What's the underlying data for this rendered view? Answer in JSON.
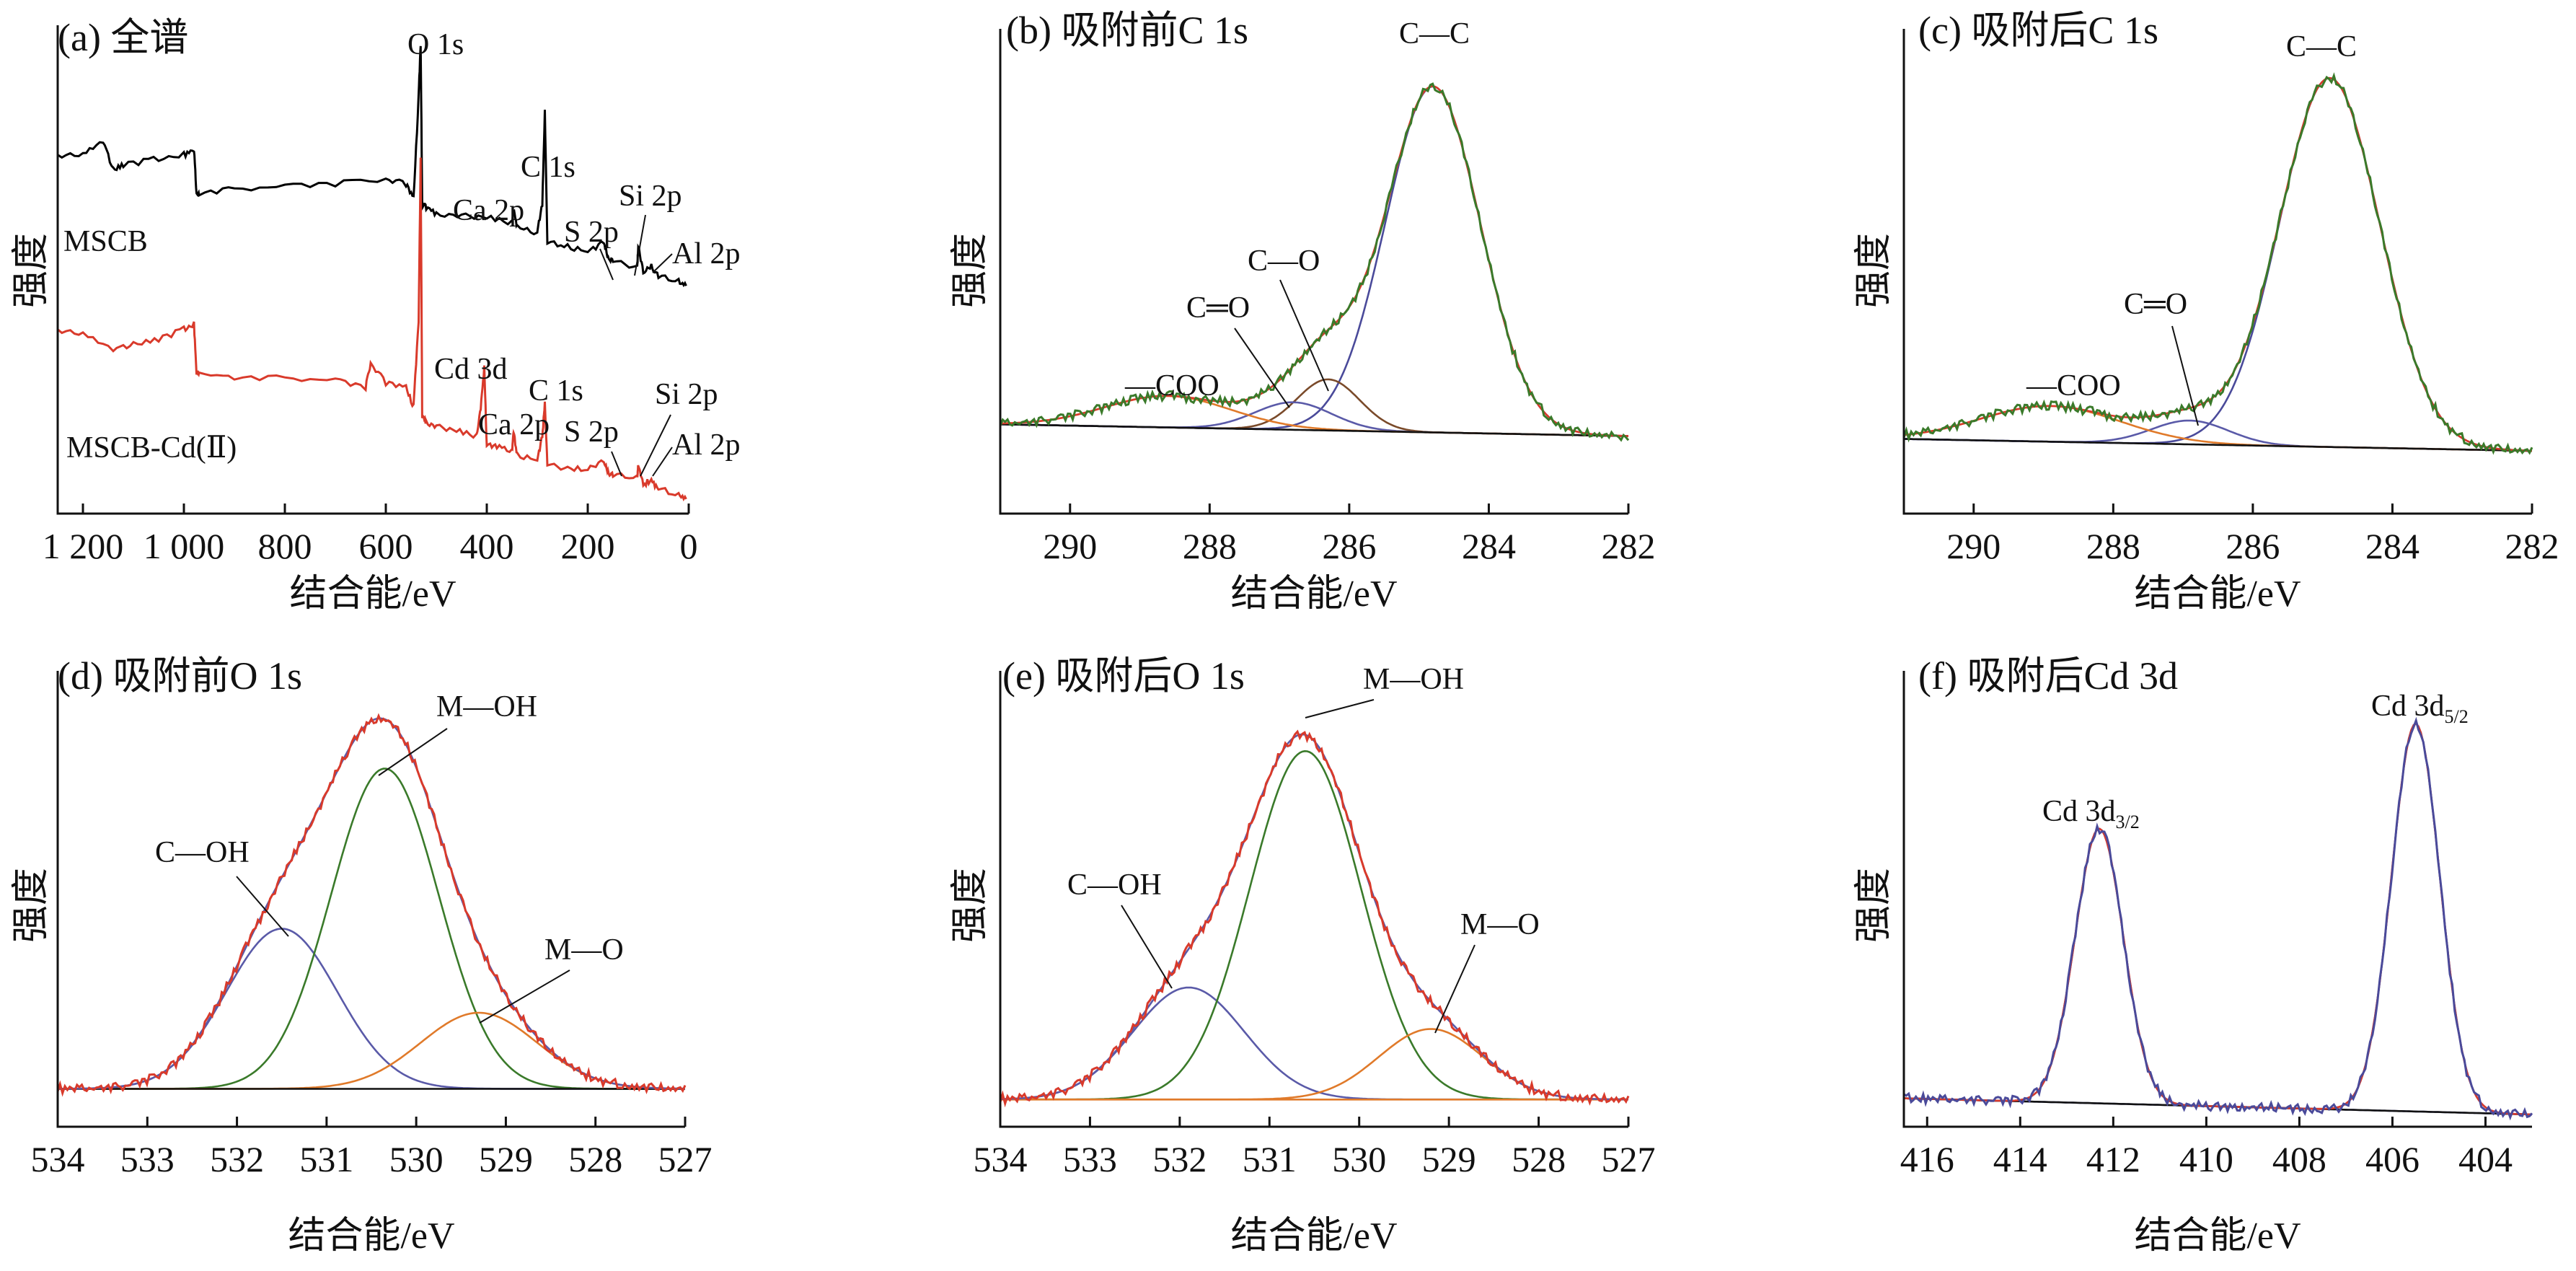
{
  "chart_data": [
    {
      "id": "a",
      "type": "line",
      "title": "(a)  全谱",
      "xlabel": "结合能/eV",
      "ylabel": "强度",
      "xlim": [
        1250,
        0
      ],
      "ylim": [
        0,
        100
      ],
      "ticks": [
        1200,
        1000,
        800,
        600,
        400,
        200,
        0
      ],
      "tick_labels": [
        "1 200",
        "1 000",
        "800",
        "600",
        "400",
        "200",
        "0"
      ],
      "series": [
        {
          "name": "MSCB",
          "color": "#000000",
          "style": "spectrum",
          "x": [
            1250,
            1200,
            1160,
            1140,
            1120,
            1060,
            1000,
            980,
            975,
            970,
            900,
            800,
            700,
            600,
            560,
            545,
            535,
            531,
            528,
            520,
            500,
            450,
            400,
            350,
            347,
            340,
            300,
            290,
            285,
            280,
            240,
            200,
            168,
            160,
            150,
            102,
            100,
            90,
            74,
            60,
            20,
            5
          ],
          "y": [
            74,
            74,
            77,
            71,
            72,
            73,
            74,
            75,
            66,
            66,
            67,
            67.5,
            68,
            69,
            68,
            65,
            86,
            97,
            64,
            63,
            62,
            61.5,
            61,
            60,
            63,
            59,
            58,
            64,
            83,
            56,
            55,
            54,
            56,
            53,
            52,
            51,
            55,
            50,
            51,
            49,
            48,
            47
          ]
        },
        {
          "name": "MSCB-Cd(Ⅱ)",
          "color": "#d93a2b",
          "style": "spectrum",
          "x": [
            1250,
            1200,
            1140,
            1100,
            1050,
            1000,
            980,
            975,
            970,
            900,
            800,
            700,
            640,
            630,
            600,
            560,
            545,
            535,
            531,
            528,
            520,
            500,
            460,
            420,
            412,
            405,
            400,
            380,
            350,
            347,
            340,
            300,
            290,
            285,
            280,
            240,
            200,
            168,
            160,
            150,
            102,
            100,
            90,
            74,
            60,
            20,
            5
          ],
          "y": [
            38,
            37,
            34,
            35,
            36,
            38,
            39,
            29,
            29,
            28,
            28,
            27.5,
            26,
            31,
            27,
            26,
            22,
            40,
            73,
            20,
            19,
            18,
            17,
            16,
            22,
            30,
            14,
            14,
            13,
            17,
            12,
            11,
            16,
            23,
            10,
            9.5,
            9,
            11,
            8.5,
            8,
            7.5,
            10,
            6,
            7,
            5,
            4,
            3
          ]
        }
      ],
      "labels": [
        "O 1s",
        "C 1s",
        "Ca 2p",
        "S 2p",
        "Si 2p",
        "Al 2p",
        "MSCB",
        "Cd 3d",
        "C 1s",
        "Ca 2p",
        "S 2p",
        "Si 2p",
        "Al 2p",
        "MSCB-Cd(Ⅱ)"
      ]
    },
    {
      "id": "b",
      "type": "line",
      "title": "(b)  吸附前C 1s",
      "xlabel": "结合能/eV",
      "ylabel": "强度",
      "xlim": [
        291,
        282
      ],
      "ylim": [
        0,
        100
      ],
      "ticks": [
        290,
        288,
        286,
        284,
        282
      ],
      "tick_labels": [
        "290",
        "288",
        "286",
        "284",
        "282"
      ],
      "series": [
        {
          "name": "C—C",
          "color": "#4a4a9a",
          "kind": "peak",
          "center": 284.8,
          "height": 88,
          "sigma": 0.68
        },
        {
          "name": "C—O",
          "color": "#7a4a2a",
          "kind": "peak",
          "center": 286.3,
          "height": 13,
          "sigma": 0.45
        },
        {
          "name": "C=O",
          "color": "#5a5aa8",
          "kind": "peak",
          "center": 286.8,
          "height": 7,
          "sigma": 0.55
        },
        {
          "name": "—COO",
          "color": "#e07a2a",
          "kind": "peak",
          "center": 288.6,
          "height": 8,
          "sigma": 0.9
        },
        {
          "name": "background",
          "color": "#111111",
          "kind": "baseline",
          "y0": 4,
          "y1": 1
        },
        {
          "name": "envelope",
          "color": "#d93a2b",
          "kind": "envelope"
        },
        {
          "name": "raw",
          "color": "#3a7a2a",
          "kind": "raw"
        }
      ],
      "labels": [
        "C—C",
        "C—O",
        "C═O",
        "—COO"
      ]
    },
    {
      "id": "c",
      "type": "line",
      "title": "(c)  吸附后C 1s",
      "xlabel": "结合能/eV",
      "ylabel": "强度",
      "xlim": [
        291,
        282
      ],
      "ylim": [
        0,
        100
      ],
      "ticks": [
        290,
        288,
        286,
        284,
        282
      ],
      "tick_labels": [
        "290",
        "288",
        "286",
        "284",
        "282"
      ],
      "series": [
        {
          "name": "C—C",
          "color": "#4a4a9a",
          "kind": "peak",
          "center": 284.9,
          "height": 93,
          "sigma": 0.72
        },
        {
          "name": "C=O",
          "color": "#5a5aa8",
          "kind": "peak",
          "center": 286.9,
          "height": 6,
          "sigma": 0.55
        },
        {
          "name": "—COO",
          "color": "#e07a2a",
          "kind": "peak",
          "center": 288.9,
          "height": 9,
          "sigma": 1.0
        },
        {
          "name": "background",
          "color": "#111111",
          "kind": "baseline",
          "y0": 3,
          "y1": 0
        },
        {
          "name": "envelope",
          "color": "#d93a2b",
          "kind": "envelope"
        },
        {
          "name": "raw",
          "color": "#3a7a2a",
          "kind": "raw"
        }
      ],
      "labels": [
        "C—C",
        "C═O",
        "—COO"
      ]
    },
    {
      "id": "d",
      "type": "line",
      "title": "(d)  吸附前O 1s",
      "xlabel": "结合能/eV",
      "ylabel": "强度",
      "xlim": [
        534,
        527
      ],
      "ylim": [
        0,
        100
      ],
      "ticks": [
        534,
        533,
        532,
        531,
        530,
        529,
        528,
        527
      ],
      "tick_labels": [
        "534",
        "533",
        "532",
        "531",
        "530",
        "529",
        "528",
        "527"
      ],
      "series": [
        {
          "name": "C—OH",
          "color": "#5a5aa8",
          "kind": "peak",
          "center": 531.5,
          "height": 40,
          "sigma": 0.62
        },
        {
          "name": "M—OH",
          "color": "#3a7a2a",
          "kind": "peak",
          "center": 530.35,
          "height": 80,
          "sigma": 0.6
        },
        {
          "name": "M—O",
          "color": "#e07a2a",
          "kind": "peak",
          "center": 529.3,
          "height": 19,
          "sigma": 0.65
        },
        {
          "name": "background",
          "color": "#111111",
          "kind": "baseline",
          "y0": 1,
          "y1": 1
        },
        {
          "name": "envelope",
          "color": "#5a5aa8",
          "kind": "envelope"
        },
        {
          "name": "raw",
          "color": "#d93a2b",
          "kind": "raw"
        }
      ],
      "labels": [
        "C—OH",
        "M—OH",
        "M—O"
      ]
    },
    {
      "id": "e",
      "type": "line",
      "title": "(e)  吸附后O 1s",
      "xlabel": "结合能/eV",
      "ylabel": "强度",
      "xlim": [
        534,
        527
      ],
      "ylim": [
        0,
        100
      ],
      "ticks": [
        534,
        533,
        532,
        531,
        530,
        529,
        528,
        527
      ],
      "tick_labels": [
        "534",
        "533",
        "532",
        "531",
        "530",
        "529",
        "528",
        "527"
      ],
      "series": [
        {
          "name": "C—OH",
          "color": "#5a5aa8",
          "kind": "peak",
          "center": 531.9,
          "height": 27,
          "sigma": 0.62
        },
        {
          "name": "M—OH",
          "color": "#3a7a2a",
          "kind": "peak",
          "center": 530.6,
          "height": 84,
          "sigma": 0.62
        },
        {
          "name": "M—O",
          "color": "#e07a2a",
          "kind": "peak",
          "center": 529.2,
          "height": 17,
          "sigma": 0.58
        },
        {
          "name": "background",
          "color": "#e07a2a",
          "kind": "baseline",
          "y0": 1,
          "y1": 1
        },
        {
          "name": "envelope",
          "color": "#5a5aa8",
          "kind": "envelope"
        },
        {
          "name": "raw",
          "color": "#d93a2b",
          "kind": "raw"
        }
      ],
      "labels": [
        "C—OH",
        "M—OH",
        "M—O"
      ]
    },
    {
      "id": "f",
      "type": "line",
      "title": "(f)  吸附后Cd 3d",
      "xlabel": "结合能/eV",
      "ylabel": "强度",
      "xlim": [
        416.5,
        403
      ],
      "ylim": [
        0,
        100
      ],
      "ticks": [
        416,
        414,
        412,
        410,
        408,
        406,
        404
      ],
      "tick_labels": [
        "416",
        "414",
        "412",
        "410",
        "408",
        "406",
        "404"
      ],
      "series": [
        {
          "name": "Cd 3d3/2",
          "color": "#5a5aa8",
          "kind": "peak",
          "center": 412.3,
          "height": 68,
          "sigma": 0.52
        },
        {
          "name": "Cd 3d5/2",
          "color": "#5a5aa8",
          "kind": "peak",
          "center": 405.5,
          "height": 96,
          "sigma": 0.52
        },
        {
          "name": "background",
          "color": "#111111",
          "kind": "baseline",
          "y0": 4,
          "y1": 0
        },
        {
          "name": "envelope",
          "color": "#d93a2b",
          "kind": "envelope"
        },
        {
          "name": "raw",
          "color": "#4a4a9a",
          "kind": "raw"
        }
      ],
      "labels": [
        "Cd 3d",
        "3/2",
        "Cd 3d",
        "5/2"
      ]
    }
  ]
}
